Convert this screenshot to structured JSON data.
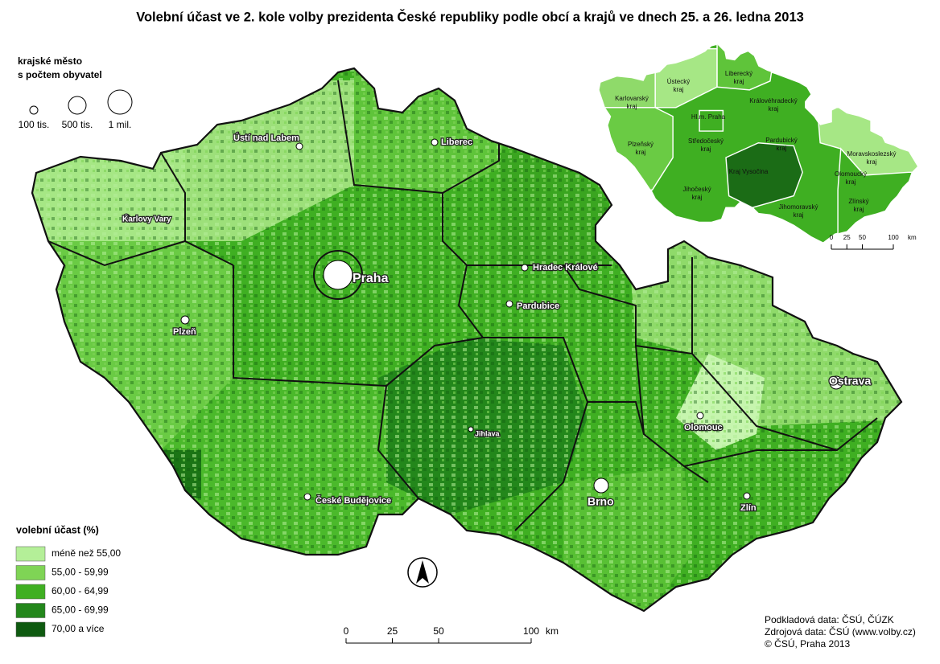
{
  "title": "Volební účast ve 2. kole volby prezidenta České republiky podle obcí a krajů ve dnech 25. a 26. ledna 2013",
  "size_legend": {
    "title_lines": [
      "krajské město",
      "s počtem obyvatel"
    ],
    "items": [
      "100 tis.",
      "500 tis.",
      "1 mil."
    ]
  },
  "cities": [
    "Praha",
    "Brno",
    "Ostrava",
    "Plzeň",
    "Liberec",
    "Ústí nad Labem",
    "Karlovy Vary",
    "Hradec Králové",
    "Pardubice",
    "Olomouc",
    "Jihlava",
    "České Budějovice",
    "Zlín"
  ],
  "legend": {
    "title": "volební účast (%)",
    "items": [
      {
        "label": "méně než 55,00",
        "color": "#b4ef98"
      },
      {
        "label": "55,00 - 59,99",
        "color": "#7fd455"
      },
      {
        "label": "60,00 - 64,99",
        "color": "#3faf22"
      },
      {
        "label": "65,00 - 69,99",
        "color": "#23871b"
      },
      {
        "label": "70,00 a více",
        "color": "#0e5a10"
      }
    ]
  },
  "inset": {
    "regions": [
      "Ústecký kraj",
      "Liberecký kraj",
      "Karlovarský kraj",
      "Královéhradecký kraj",
      "Hl.m. Praha",
      "Středočeský kraj",
      "Pardubický kraj",
      "Plzeňský kraj",
      "Moravskoslezský kraj",
      "Kraj Vysočina",
      "Olomoucký kraj",
      "Jihočeský kraj",
      "Zlínský kraj",
      "Jihomoravský kraj"
    ],
    "scale": {
      "ticks": [
        0,
        25,
        50,
        100
      ],
      "unit": "km"
    }
  },
  "scale": {
    "ticks": [
      0,
      25,
      50,
      100
    ],
    "unit": "km"
  },
  "credits": [
    "Podkladová data: ČSÚ, ČÚZK",
    "Zdrojová data: ČSÚ (www.volby.cz)",
    "© ČSÚ, Praha 2013"
  ]
}
